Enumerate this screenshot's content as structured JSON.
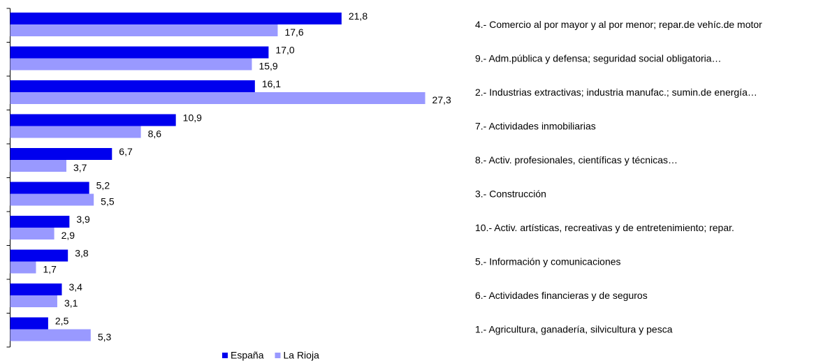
{
  "chart_data": {
    "type": "bar",
    "orientation": "horizontal",
    "categories": [
      "4.- Comercio al por mayor y al por menor; repar.de vehíc.de motor",
      "9.- Adm.pública y defensa; seguridad social obligatoria…",
      "2.- Industrias extractivas; industria manufac.; sumin.de energía…",
      "7.- Actividades inmobiliarias",
      "8.- Activ. profesionales, científicas y técnicas…",
      "3.- Construcción",
      "10.- Activ. artísticas, recreativas y de entretenimiento; repar.",
      "5.- Información y comunicaciones",
      "6.- Actividades financieras y de seguros",
      "1.- Agricultura, ganadería, silvicultura y pesca"
    ],
    "series": [
      {
        "name": "España",
        "color": "#0000ee",
        "values": [
          21.8,
          17.0,
          16.1,
          10.9,
          6.7,
          5.2,
          3.9,
          3.8,
          3.4,
          2.5
        ],
        "value_labels": [
          "21,8",
          "17,0",
          "16,1",
          "10,9",
          "6,7",
          "5,2",
          "3,9",
          "3,8",
          "3,4",
          "2,5"
        ]
      },
      {
        "name": "La Rioja",
        "color": "#9999ff",
        "values": [
          17.6,
          15.9,
          27.3,
          8.6,
          3.7,
          5.5,
          2.9,
          1.7,
          3.1,
          5.3
        ],
        "value_labels": [
          "17,6",
          "15,9",
          "27,3",
          "8,6",
          "3,7",
          "5,5",
          "2,9",
          "1,7",
          "3,1",
          "5,3"
        ]
      }
    ],
    "legend": "bottom"
  }
}
